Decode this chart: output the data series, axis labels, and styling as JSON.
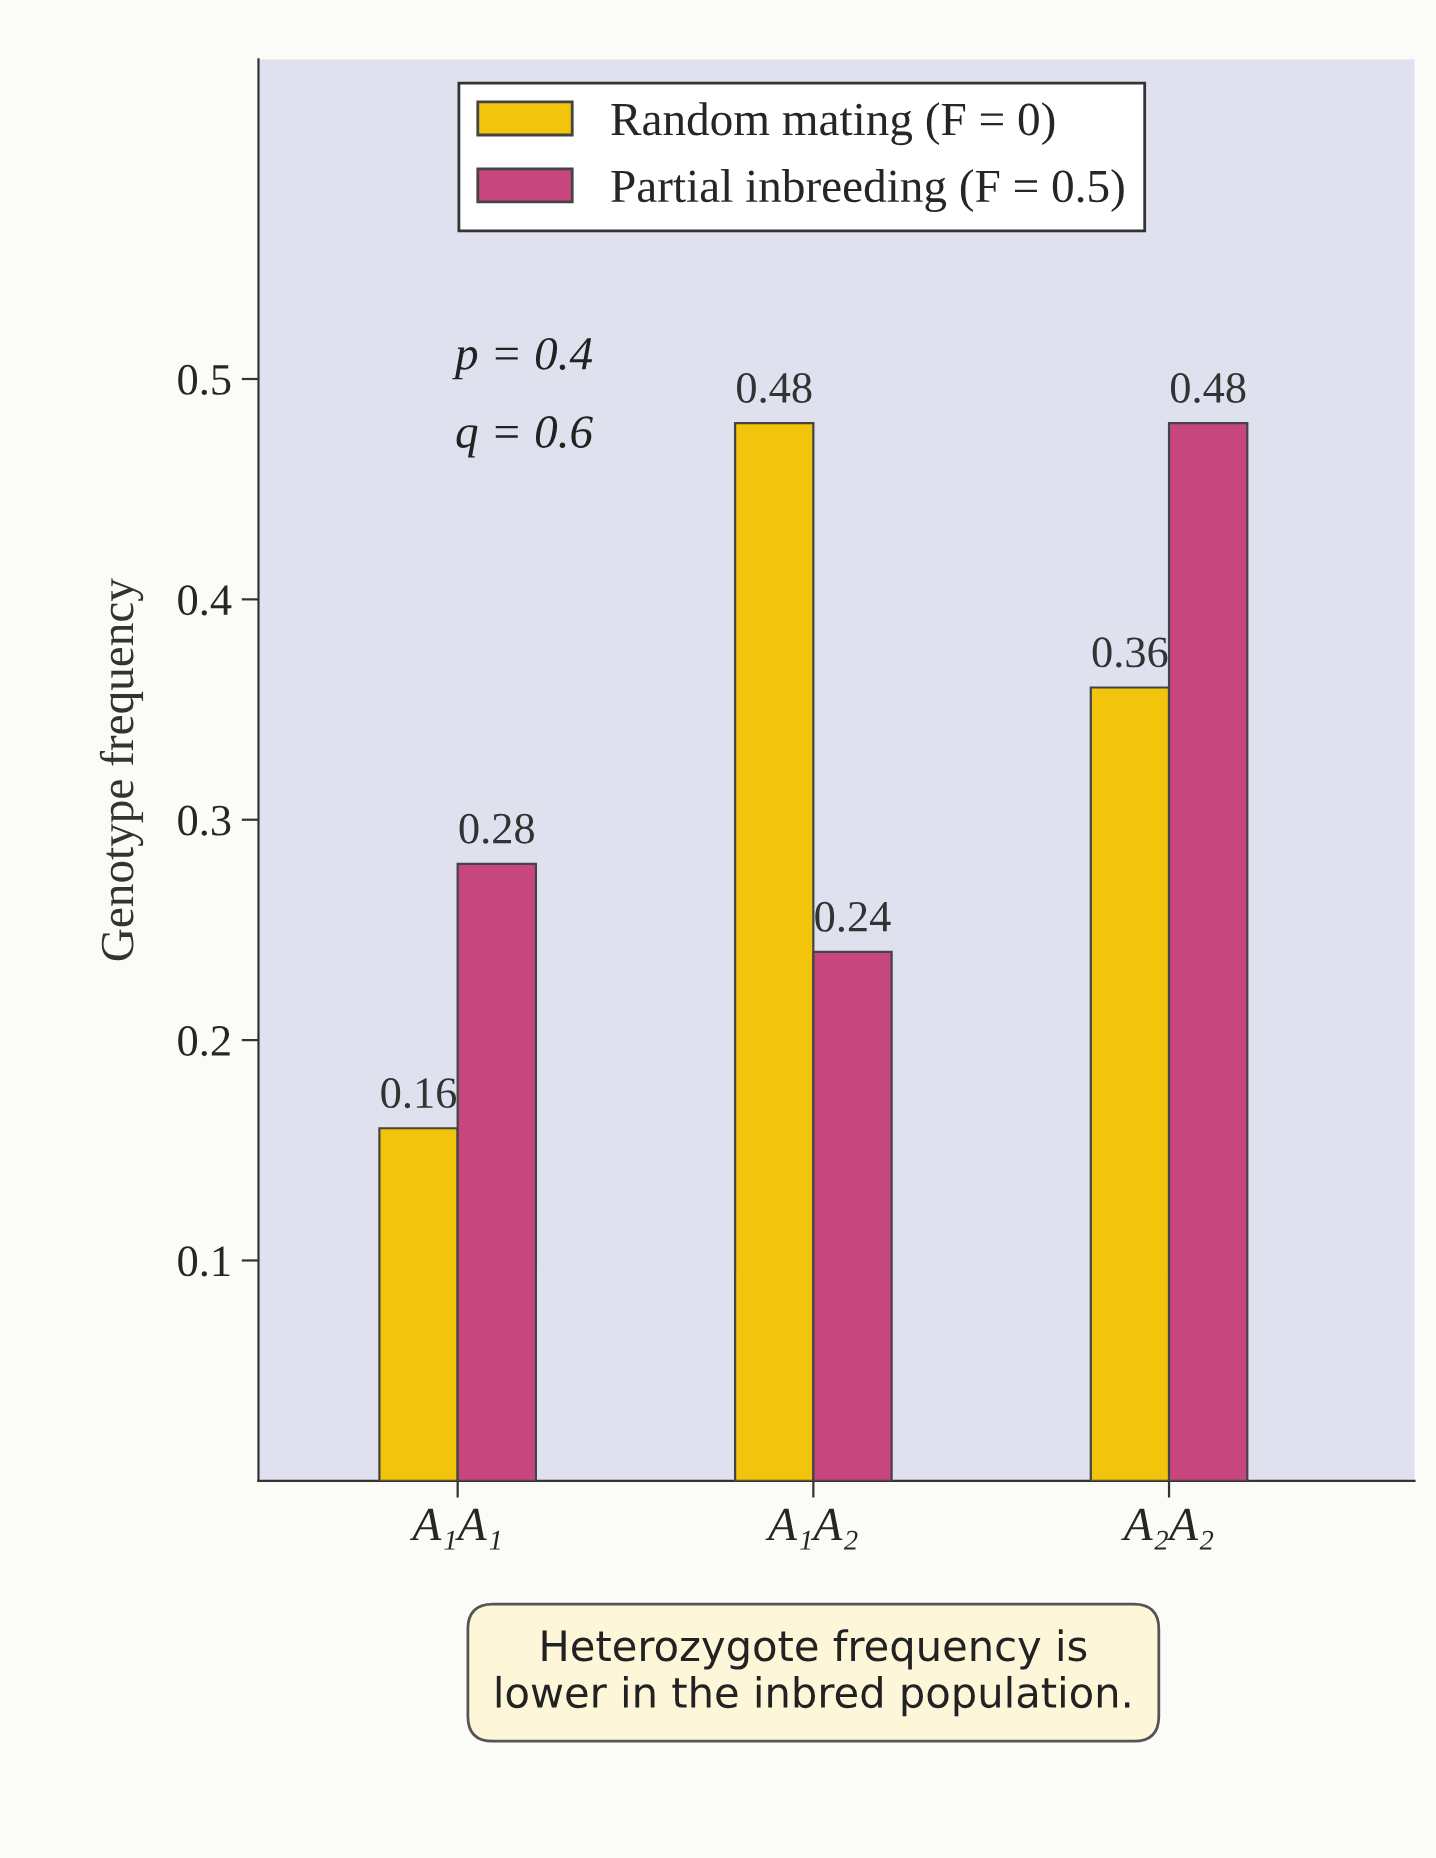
{
  "chart_data": {
    "type": "bar",
    "ylabel": "Genotype frequency",
    "categories": [
      "A₁A₁",
      "A₁A₂",
      "A₂A₂"
    ],
    "series": [
      {
        "name": "Random mating (F = 0)",
        "color": "#f2c40c",
        "values": [
          0.16,
          0.48,
          0.36
        ]
      },
      {
        "name": "Partial inbreeding (F = 0.5)",
        "color": "#c7467e",
        "values": [
          0.28,
          0.24,
          0.48
        ]
      }
    ],
    "ylim": [
      0,
      0.645
    ],
    "yticks": [
      0.1,
      0.2,
      0.3,
      0.4,
      0.5
    ],
    "data_labels": true,
    "legend": "top",
    "grid": false,
    "annotations": [
      "p = 0.4",
      "q = 0.6",
      "Heterozygote frequency is\nlower in the inbred population."
    ]
  }
}
